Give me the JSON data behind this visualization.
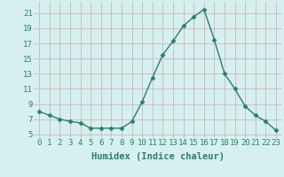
{
  "x": [
    0,
    1,
    2,
    3,
    4,
    5,
    6,
    7,
    8,
    9,
    10,
    11,
    12,
    13,
    14,
    15,
    16,
    17,
    18,
    19,
    20,
    21,
    22,
    23
  ],
  "y": [
    8.0,
    7.5,
    7.0,
    6.7,
    6.5,
    5.8,
    5.8,
    5.8,
    5.8,
    6.7,
    9.3,
    12.5,
    15.5,
    17.3,
    19.3,
    20.5,
    21.5,
    17.5,
    13.0,
    11.0,
    8.7,
    7.5,
    6.7,
    5.5
  ],
  "line_color": "#2e7d6e",
  "marker": "D",
  "marker_size": 2.5,
  "bg_color": "#d6f0ef",
  "grid_color": "#c8b8b8",
  "xlabel": "Humidex (Indice chaleur)",
  "yticks": [
    5,
    7,
    9,
    11,
    13,
    15,
    17,
    19,
    21
  ],
  "ylim": [
    4.5,
    22.5
  ],
  "xlim": [
    -0.5,
    23.5
  ],
  "xlabel_fontsize": 7.5,
  "tick_fontsize": 6.5,
  "linewidth": 1.0
}
